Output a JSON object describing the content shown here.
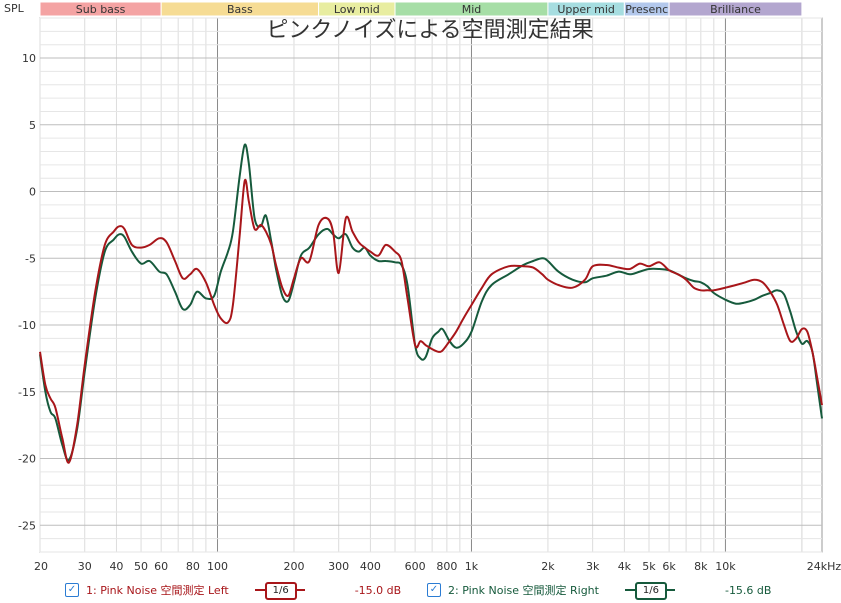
{
  "chart_data": {
    "type": "line",
    "title": "ピンクノイズによる空間測定結果",
    "ylabel": "SPL",
    "xlabel": "",
    "x_scale": "log",
    "xlim": [
      20,
      24000
    ],
    "ylim": [
      -27,
      13
    ],
    "grid": true,
    "x_ticks": [
      {
        "v": 20,
        "label": "20"
      },
      {
        "v": 30,
        "label": "30"
      },
      {
        "v": 40,
        "label": "40"
      },
      {
        "v": 50,
        "label": "50"
      },
      {
        "v": 60,
        "label": "60"
      },
      {
        "v": 80,
        "label": "80"
      },
      {
        "v": 100,
        "label": "100"
      },
      {
        "v": 200,
        "label": "200"
      },
      {
        "v": 300,
        "label": "300"
      },
      {
        "v": 400,
        "label": "400"
      },
      {
        "v": 600,
        "label": "600"
      },
      {
        "v": 800,
        "label": "800"
      },
      {
        "v": 1000,
        "label": "1k"
      },
      {
        "v": 2000,
        "label": "2k"
      },
      {
        "v": 3000,
        "label": "3k"
      },
      {
        "v": 4000,
        "label": "4k"
      },
      {
        "v": 5000,
        "label": "5k"
      },
      {
        "v": 6000,
        "label": "6k"
      },
      {
        "v": 8000,
        "label": "8k"
      },
      {
        "v": 10000,
        "label": "10k"
      },
      {
        "v": 24000,
        "label": "24kHz"
      }
    ],
    "y_ticks": [
      10,
      5,
      0,
      -5,
      -10,
      -15,
      -20,
      -25
    ],
    "bands": [
      {
        "label": "Sub bass",
        "from": 20,
        "to": 60,
        "color": "#f4a3a3"
      },
      {
        "label": "Bass",
        "from": 60,
        "to": 250,
        "color": "#f6dc94"
      },
      {
        "label": "Low mid",
        "from": 250,
        "to": 500,
        "color": "#e8eda0"
      },
      {
        "label": "Mid",
        "from": 500,
        "to": 2000,
        "color": "#a6dea6"
      },
      {
        "label": "Upper mid",
        "from": 2000,
        "to": 4000,
        "color": "#a6dde0"
      },
      {
        "label": "Presenc",
        "from": 4000,
        "to": 6000,
        "color": "#b3c8ec"
      },
      {
        "label": "Brilliance",
        "from": 6000,
        "to": 20000,
        "color": "#b3a6cf"
      }
    ],
    "series": [
      {
        "name": "1: Pink Noise 空間測定 Left",
        "color": "#a8161a",
        "offset": "-15.0 dB",
        "smoothing": "1/6",
        "x": [
          20,
          21,
          22,
          23,
          24.5,
          26,
          28,
          30,
          33,
          36,
          39,
          41,
          43,
          46,
          50,
          54,
          59,
          63,
          68,
          73,
          78,
          83,
          90,
          97,
          103,
          110,
          115,
          122,
          128,
          133,
          140,
          148,
          155,
          163,
          170,
          180,
          190,
          200,
          213,
          230,
          250,
          270,
          285,
          300,
          320,
          340,
          360,
          380,
          400,
          430,
          460,
          500,
          530,
          560,
          600,
          630,
          660,
          700,
          740,
          770,
          820,
          870,
          930,
          1000,
          1100,
          1200,
          1400,
          1600,
          1750,
          1900,
          2000,
          2200,
          2500,
          2800,
          3000,
          3400,
          3800,
          4200,
          4600,
          5000,
          5500,
          6000,
          6500,
          7000,
          7500,
          8000,
          8500,
          9000,
          10000,
          11000,
          12000,
          13000,
          14000,
          15000,
          16000,
          17000,
          18000,
          19000,
          20000,
          21000,
          22000,
          23000,
          24000
        ],
        "y": [
          -12,
          -14.5,
          -15.5,
          -16.2,
          -18.5,
          -20.3,
          -17.5,
          -13,
          -7.5,
          -4,
          -3,
          -2.6,
          -2.8,
          -4,
          -4.2,
          -4,
          -3.5,
          -3.8,
          -5.2,
          -6.5,
          -6.2,
          -5.8,
          -6.8,
          -8.5,
          -9.5,
          -9.8,
          -8.5,
          -3.5,
          0.8,
          -0.8,
          -2.8,
          -2.5,
          -3,
          -4,
          -5.5,
          -7.2,
          -7.8,
          -6.5,
          -5,
          -5.2,
          -2.5,
          -2,
          -3,
          -6.1,
          -2,
          -3,
          -3.8,
          -4.2,
          -4.5,
          -4.8,
          -4,
          -4.5,
          -5.2,
          -8,
          -11.5,
          -11.2,
          -11.5,
          -11.8,
          -12,
          -11.9,
          -11.2,
          -10.5,
          -9.5,
          -8.5,
          -7.2,
          -6.2,
          -5.6,
          -5.6,
          -5.7,
          -6.2,
          -6.6,
          -7,
          -7.2,
          -6.6,
          -5.6,
          -5.5,
          -5.7,
          -5.8,
          -5.4,
          -5.6,
          -5.3,
          -5.9,
          -6.2,
          -6.6,
          -7.2,
          -7.4,
          -7.4,
          -7.4,
          -7.2,
          -7,
          -6.8,
          -6.6,
          -6.8,
          -7.5,
          -8.5,
          -10,
          -11.2,
          -11,
          -10.3,
          -10.5,
          -12,
          -14,
          -16
        ]
      },
      {
        "name": "2: Pink Noise 空間測定 Right",
        "color": "#165a3c",
        "offset": "-15.6 dB",
        "smoothing": "1/6",
        "x": [
          20,
          21,
          22,
          23,
          24.5,
          26,
          28,
          30,
          33,
          36,
          39,
          41,
          43,
          46,
          50,
          54,
          59,
          63,
          68,
          73,
          78,
          83,
          90,
          97,
          103,
          110,
          115,
          122,
          128,
          133,
          140,
          148,
          155,
          163,
          170,
          180,
          190,
          200,
          213,
          230,
          250,
          270,
          285,
          300,
          320,
          340,
          360,
          380,
          400,
          430,
          460,
          500,
          530,
          560,
          600,
          630,
          660,
          700,
          740,
          770,
          820,
          870,
          930,
          1000,
          1100,
          1200,
          1400,
          1600,
          1750,
          1900,
          2000,
          2200,
          2500,
          2800,
          3000,
          3400,
          3800,
          4200,
          4600,
          5000,
          5500,
          6000,
          6500,
          7000,
          7500,
          8000,
          8500,
          9000,
          10000,
          11000,
          12000,
          13000,
          14000,
          15000,
          16000,
          17000,
          18000,
          19000,
          20000,
          21000,
          22000,
          23000,
          24000
        ],
        "y": [
          -12.2,
          -15,
          -16.5,
          -17,
          -19,
          -20.1,
          -17.8,
          -13.5,
          -8,
          -4.5,
          -3.6,
          -3.2,
          -3.4,
          -4.5,
          -5.4,
          -5.2,
          -6,
          -6.2,
          -7.5,
          -8.8,
          -8.5,
          -7.5,
          -8,
          -7.8,
          -6,
          -4.5,
          -3,
          1,
          3.5,
          2,
          -2,
          -2.6,
          -1.8,
          -3.8,
          -5.8,
          -7.8,
          -8.2,
          -6.8,
          -4.8,
          -4.2,
          -3.2,
          -2.8,
          -3.2,
          -3.5,
          -3.2,
          -4.2,
          -4.5,
          -4.2,
          -4.8,
          -5.2,
          -5.2,
          -5.3,
          -5.5,
          -7,
          -11.5,
          -12.5,
          -12.4,
          -11,
          -10.5,
          -10.3,
          -11.2,
          -11.7,
          -11.4,
          -10.5,
          -8.2,
          -7,
          -6.2,
          -5.5,
          -5.2,
          -5,
          -5.2,
          -6,
          -6.6,
          -6.8,
          -6.5,
          -6.3,
          -6,
          -6.2,
          -6,
          -5.8,
          -5.8,
          -5.9,
          -6.2,
          -6.5,
          -6.7,
          -6.8,
          -7.1,
          -7.6,
          -8.1,
          -8.4,
          -8.3,
          -8.1,
          -7.8,
          -7.6,
          -7.4,
          -7.7,
          -9,
          -10.5,
          -11.4,
          -11.2,
          -12,
          -14.5,
          -17
        ]
      }
    ]
  }
}
